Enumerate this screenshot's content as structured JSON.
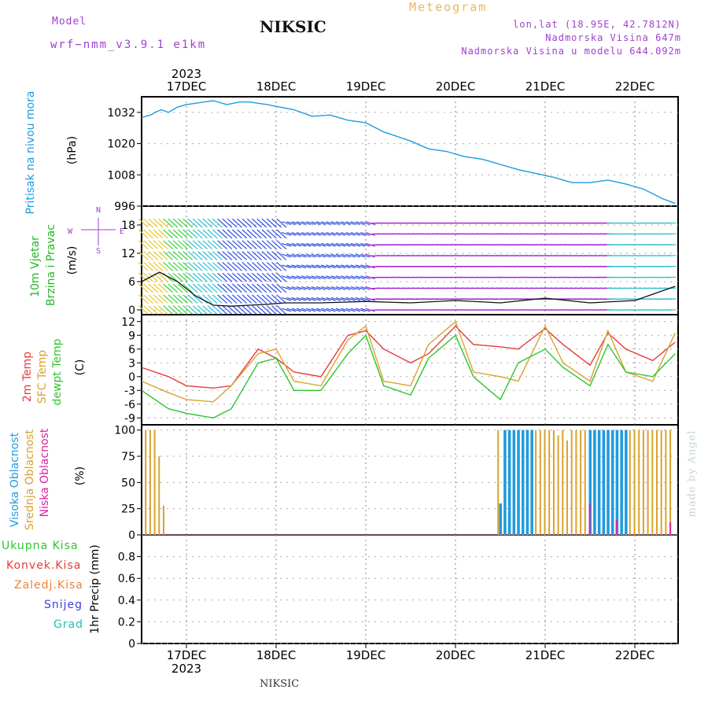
{
  "header": {
    "model_label": "Model",
    "model_name": "wrf−nmm_v3.9.1  e1km",
    "station": "NIKSIC",
    "meteogram": "Meteogram",
    "lonlat": "lon,lat (18.95E, 42.7812N)",
    "elev": "Nadmorska Visina 647m",
    "elev_model": "Nadmorska Visina u modelu 644.092m",
    "footer_station": "NIKSIC",
    "credit": "made by Angel"
  },
  "colors": {
    "pressure": "#1e9be0",
    "temp2m": "#e83a3a",
    "sfc_temp": "#d9a22e",
    "dewpt": "#2fc42f",
    "cloud_high": "#1e9be0",
    "cloud_mid": "#d9a22e",
    "cloud_low": "#e020a0",
    "wind_label": "#22b822",
    "purple": "#a040d0"
  },
  "time_axis": {
    "year": "2023",
    "days": [
      "17DEC",
      "18DEC",
      "19DEC",
      "20DEC",
      "21DEC",
      "22DEC"
    ]
  },
  "panels": {
    "pressure": {
      "title": "Pritisak na nivou mora",
      "unit": "(hPa)"
    },
    "wind": {
      "title1": "10m Vjetar",
      "title2": "Brzina i Pravac",
      "unit": "(m/s)",
      "compass": [
        "N",
        "S",
        "E",
        "W"
      ]
    },
    "temp": {
      "title1": "2m Temp",
      "title2": "SFC Temp",
      "title3": "dewpt Temp",
      "unit": "(C)"
    },
    "cloud": {
      "title1": "Visoka Oblacnost",
      "title2": "Srednja Oblacnost",
      "title3": "Niska Oblacnost",
      "unit": "(%)"
    },
    "precip": {
      "unit": "1hr Precip (mm)",
      "legend": [
        "Ukupna Kisa",
        "Konvek.Kisa",
        "Zaledj.Kisa",
        "Snijeg",
        "Grad"
      ]
    }
  },
  "chart_data": [
    {
      "type": "line",
      "name": "pressure",
      "ylim": [
        996,
        1038
      ],
      "yticks": [
        996,
        1008,
        1020,
        1032
      ],
      "x": [
        0,
        0.1,
        0.15,
        0.22,
        0.3,
        0.4,
        0.5,
        0.6,
        0.7,
        0.8,
        0.95,
        1.1,
        1.2,
        1.3,
        1.4,
        1.5,
        1.7,
        1.9,
        2.1,
        2.3,
        2.5,
        2.7,
        3.0,
        3.2,
        3.4,
        3.6,
        3.8,
        4.0,
        4.2,
        4.4,
        4.6,
        4.8,
        5.0,
        5.2,
        5.4,
        5.6,
        5.8,
        5.95
      ],
      "values": [
        1030,
        1031,
        1032,
        1033,
        1032,
        1034,
        1035,
        1035.5,
        1036,
        1036.5,
        1035,
        1036,
        1036,
        1035.5,
        1035,
        1034.3,
        1033,
        1030.5,
        1031,
        1029,
        1028,
        1024.5,
        1021,
        1018,
        1017,
        1015,
        1014,
        1012,
        1010,
        1008.5,
        1007,
        1005,
        1005,
        1006,
        1004.5,
        1002.5,
        999,
        997
      ]
    },
    {
      "type": "line",
      "name": "wind",
      "ylim": [
        -1,
        22
      ],
      "yticks": [
        0,
        6,
        12,
        18
      ],
      "x": [
        0,
        0.2,
        0.4,
        0.6,
        0.8,
        1.0,
        1.2,
        1.4,
        1.6,
        2.0,
        2.5,
        3.0,
        3.5,
        4.0,
        4.5,
        5.0,
        5.5,
        5.95
      ],
      "values": [
        6,
        8,
        6,
        3,
        1,
        0.8,
        1.0,
        1.2,
        1.5,
        1.5,
        1.8,
        1.5,
        2.0,
        1.5,
        2.5,
        1.5,
        2.0,
        5.0
      ],
      "series_color": "#111111"
    },
    {
      "type": "line",
      "name": "temperature",
      "ylim": [
        -10.5,
        13.5
      ],
      "yticks": [
        -9,
        -6,
        -3,
        0,
        3,
        6,
        9,
        12
      ],
      "series": [
        {
          "name": "2m Temp",
          "x": [
            0,
            0.3,
            0.5,
            0.8,
            1.0,
            1.3,
            1.5,
            1.7,
            2.0,
            2.3,
            2.5,
            2.7,
            3.0,
            3.2,
            3.5,
            3.7,
            4.0,
            4.2,
            4.5,
            4.7,
            5.0,
            5.2,
            5.4,
            5.7,
            5.95
          ],
          "values": [
            2,
            0,
            -2,
            -2.5,
            -2,
            6,
            4,
            1,
            0,
            9,
            10,
            6,
            3,
            5,
            11,
            7,
            6.5,
            6,
            10.5,
            7,
            2.5,
            9.5,
            6,
            3.5,
            7.5
          ]
        },
        {
          "name": "SFC Temp",
          "x": [
            0,
            0.3,
            0.5,
            0.8,
            1.0,
            1.3,
            1.5,
            1.7,
            2.0,
            2.3,
            2.5,
            2.7,
            3.0,
            3.2,
            3.5,
            3.7,
            4.0,
            4.2,
            4.5,
            4.7,
            5.0,
            5.2,
            5.4,
            5.7,
            5.95
          ],
          "values": [
            -1,
            -3.5,
            -5,
            -5.5,
            -2,
            5,
            6,
            -1,
            -2,
            8,
            11,
            -1,
            -2,
            7,
            12,
            1,
            0,
            -1,
            11,
            3,
            -1,
            10,
            1,
            -1,
            9.5
          ]
        },
        {
          "name": "dewpt Temp",
          "x": [
            0,
            0.3,
            0.5,
            0.8,
            1.0,
            1.3,
            1.5,
            1.7,
            2.0,
            2.3,
            2.5,
            2.7,
            3.0,
            3.2,
            3.5,
            3.7,
            4.0,
            4.2,
            4.5,
            4.7,
            5.0,
            5.2,
            5.4,
            5.7,
            5.95
          ],
          "values": [
            -3,
            -7,
            -8,
            -9,
            -7,
            3,
            4,
            -3,
            -3,
            5,
            9,
            -2,
            -4,
            4,
            9,
            0,
            -5,
            3,
            6,
            2,
            -2,
            7,
            1,
            0,
            5
          ]
        }
      ]
    },
    {
      "type": "bar",
      "name": "cloud",
      "ylim": [
        0,
        105
      ],
      "yticks": [
        0,
        25,
        50,
        75,
        100
      ],
      "series": [
        {
          "name": "Srednja Oblacnost",
          "x": [
            0.05,
            0.1,
            0.15,
            0.2,
            0.25,
            3.98,
            4.05,
            4.1,
            4.15,
            4.2,
            4.25,
            4.3,
            4.35,
            4.4,
            4.45,
            4.5,
            4.55,
            4.6,
            4.65,
            4.7,
            4.75,
            4.8,
            4.85,
            4.9,
            4.95,
            5.0,
            5.05,
            5.1,
            5.15,
            5.2,
            5.25,
            5.3,
            5.35,
            5.4,
            5.45,
            5.5,
            5.55,
            5.6,
            5.65,
            5.7,
            5.75,
            5.8,
            5.85,
            5.9
          ],
          "values": [
            100,
            100,
            100,
            75,
            28,
            100,
            100,
            100,
            100,
            100,
            100,
            100,
            100,
            100,
            100,
            100,
            100,
            100,
            95,
            100,
            90,
            100,
            100,
            100,
            100,
            100,
            100,
            100,
            100,
            100,
            100,
            100,
            100,
            100,
            100,
            100,
            100,
            100,
            100,
            100,
            100,
            100,
            100,
            100
          ]
        },
        {
          "name": "Visoka Oblacnost",
          "x": [
            4.0,
            4.05,
            4.1,
            4.15,
            4.2,
            4.25,
            4.3,
            4.35,
            5.0,
            5.05,
            5.1,
            5.15,
            5.2,
            5.25,
            5.3,
            5.35,
            5.4
          ],
          "values": [
            30,
            100,
            100,
            100,
            100,
            100,
            100,
            100,
            100,
            100,
            100,
            100,
            100,
            100,
            100,
            100,
            100
          ]
        },
        {
          "name": "Niska Oblacnost",
          "x": [
            0.45,
            5.0,
            5.3,
            5.9
          ],
          "values": [
            1,
            30,
            15,
            12
          ]
        }
      ]
    },
    {
      "type": "bar",
      "name": "precipitation",
      "ylim": [
        0,
        1
      ],
      "yticks": [
        0,
        0.2,
        0.4,
        0.6,
        0.8
      ],
      "series": []
    }
  ]
}
